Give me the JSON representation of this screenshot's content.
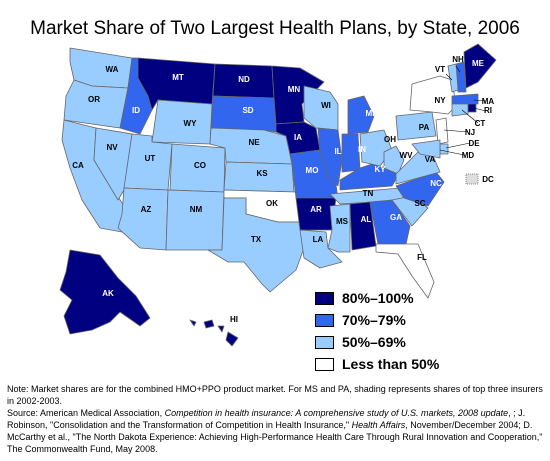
{
  "title": "Market Share of Two Largest Health Plans, by State, 2006",
  "colors": {
    "c80": "#000080",
    "c70": "#3366ee",
    "c50": "#99ccff",
    "c00": "#ffffff",
    "border": "#666666"
  },
  "legend": [
    {
      "cat": "c80",
      "label": "80%–100%"
    },
    {
      "cat": "c70",
      "label": "70%–79%"
    },
    {
      "cat": "c50",
      "label": "50%–69%"
    },
    {
      "cat": "c00",
      "label": "Less than 50%"
    }
  ],
  "states": [
    {
      "abbr": "WA",
      "cat": "c50"
    },
    {
      "abbr": "OR",
      "cat": "c50"
    },
    {
      "abbr": "CA",
      "cat": "c50"
    },
    {
      "abbr": "NV",
      "cat": "c50"
    },
    {
      "abbr": "ID",
      "cat": "c70"
    },
    {
      "abbr": "MT",
      "cat": "c80"
    },
    {
      "abbr": "WY",
      "cat": "c50"
    },
    {
      "abbr": "UT",
      "cat": "c50"
    },
    {
      "abbr": "AZ",
      "cat": "c50"
    },
    {
      "abbr": "CO",
      "cat": "c50"
    },
    {
      "abbr": "NM",
      "cat": "c50"
    },
    {
      "abbr": "ND",
      "cat": "c80"
    },
    {
      "abbr": "SD",
      "cat": "c70"
    },
    {
      "abbr": "NE",
      "cat": "c50"
    },
    {
      "abbr": "KS",
      "cat": "c50"
    },
    {
      "abbr": "OK",
      "cat": "c00"
    },
    {
      "abbr": "TX",
      "cat": "c50"
    },
    {
      "abbr": "MN",
      "cat": "c80"
    },
    {
      "abbr": "IA",
      "cat": "c80"
    },
    {
      "abbr": "MO",
      "cat": "c70"
    },
    {
      "abbr": "AR",
      "cat": "c80"
    },
    {
      "abbr": "LA",
      "cat": "c50"
    },
    {
      "abbr": "WI",
      "cat": "c50"
    },
    {
      "abbr": "IL",
      "cat": "c70"
    },
    {
      "abbr": "MS",
      "cat": "c50"
    },
    {
      "abbr": "MI",
      "cat": "c70"
    },
    {
      "abbr": "IN",
      "cat": "c70"
    },
    {
      "abbr": "KY",
      "cat": "c70"
    },
    {
      "abbr": "TN",
      "cat": "c50"
    },
    {
      "abbr": "AL",
      "cat": "c80"
    },
    {
      "abbr": "OH",
      "cat": "c50"
    },
    {
      "abbr": "GA",
      "cat": "c70"
    },
    {
      "abbr": "FL",
      "cat": "c00"
    },
    {
      "abbr": "SC",
      "cat": "c50"
    },
    {
      "abbr": "NC",
      "cat": "c70"
    },
    {
      "abbr": "WV",
      "cat": "c50"
    },
    {
      "abbr": "VA",
      "cat": "c50"
    },
    {
      "abbr": "PA",
      "cat": "c50"
    },
    {
      "abbr": "NY",
      "cat": "c00"
    },
    {
      "abbr": "ME",
      "cat": "c80"
    },
    {
      "abbr": "NH",
      "cat": "c70"
    },
    {
      "abbr": "VT",
      "cat": "c50"
    },
    {
      "abbr": "MA",
      "cat": "c70"
    },
    {
      "abbr": "RI",
      "cat": "c80"
    },
    {
      "abbr": "CT",
      "cat": "c50"
    },
    {
      "abbr": "NJ",
      "cat": "c00"
    },
    {
      "abbr": "DE",
      "cat": "c50"
    },
    {
      "abbr": "MD",
      "cat": "c50"
    },
    {
      "abbr": "DC",
      "cat": "c50"
    },
    {
      "abbr": "AK",
      "cat": "c80"
    },
    {
      "abbr": "HI",
      "cat": "c80"
    }
  ],
  "footnotes": {
    "note": "Note: Market shares are for the combined HMO+PPO product market. For MS and PA, shading represents shares of top three insurers in 2002-2003.",
    "source_prefix": "Source: American Medical Association, ",
    "source_title1": "Competition in health insurance: A comprehensive study of U.S. markets, 2008 update",
    "source_mid1": ", ; J. Robinson, \"Consolidation and the Transformation of Competition in Health Insurance,\" ",
    "source_title2": "Health Affairs",
    "source_mid2": ", November/December 2004; D. McCarthy et al., \"The North Dakota Experience: Achieving High-Performance Health Care Through Rural Innovation and Cooperation,\" The Commonwealth Fund, May 2008."
  }
}
